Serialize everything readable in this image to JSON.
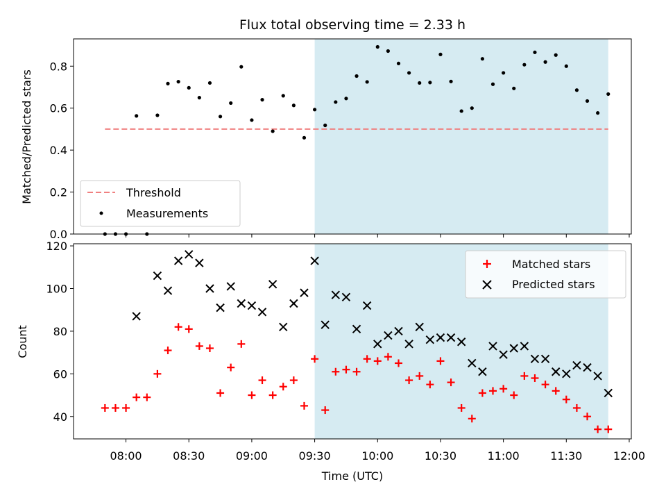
{
  "chart_data": {
    "type": "scatter",
    "title": "Flux total observing time = 2.33 h",
    "xlabel": "Time (UTC)",
    "x_ticks": [
      "08:00",
      "08:30",
      "09:00",
      "09:30",
      "10:00",
      "10:30",
      "11:00",
      "11:30",
      "12:00"
    ],
    "shaded_span": [
      "09:30",
      "11:50"
    ],
    "shade_color": "#add8e6",
    "panels": [
      {
        "id": "top",
        "ylabel": "Matched/Predicted stars",
        "ylim": [
          0,
          0.93
        ],
        "y_ticks": [
          "0.0",
          "0.2",
          "0.4",
          "0.6",
          "0.8"
        ],
        "legend_position": "lower-left",
        "threshold": {
          "name": "Threshold",
          "value": 0.5,
          "x_range": [
            "07:50",
            "11:50"
          ],
          "color": "#f08080"
        },
        "series": [
          {
            "name": "Measurements",
            "marker": "dot",
            "color": "#000000",
            "x": [
              "07:50",
              "07:55",
              "08:00",
              "08:05",
              "08:10",
              "08:15",
              "08:20",
              "08:25",
              "08:30",
              "08:35",
              "08:40",
              "08:45",
              "08:50",
              "08:55",
              "09:00",
              "09:05",
              "09:10",
              "09:15",
              "09:20",
              "09:25",
              "09:30",
              "09:35",
              "09:40",
              "09:45",
              "09:50",
              "09:55",
              "10:00",
              "10:05",
              "10:10",
              "10:15",
              "10:20",
              "10:25",
              "10:30",
              "10:35",
              "10:40",
              "10:45",
              "10:50",
              "10:55",
              "11:00",
              "11:05",
              "11:10",
              "11:15",
              "11:20",
              "11:25",
              "11:30",
              "11:35",
              "11:40",
              "11:45",
              "11:50"
            ],
            "y": [
              0.0,
              0.0,
              0.0,
              0.563,
              0.0,
              0.566,
              0.717,
              0.726,
              0.697,
              0.65,
              0.72,
              0.56,
              0.624,
              0.797,
              0.543,
              0.64,
              0.49,
              0.659,
              0.613,
              0.459,
              0.593,
              0.518,
              0.629,
              0.646,
              0.753,
              0.725,
              0.892,
              0.872,
              0.813,
              0.768,
              0.72,
              0.722,
              0.856,
              0.727,
              0.586,
              0.6,
              0.835,
              0.714,
              0.768,
              0.694,
              0.807,
              0.866,
              0.82,
              0.853,
              0.8,
              0.686,
              0.634,
              0.577,
              0.667
            ]
          }
        ]
      },
      {
        "id": "bottom",
        "ylabel": "Count",
        "ylim": [
          29.5,
          121
        ],
        "y_ticks": [
          "40",
          "60",
          "80",
          "100",
          "120"
        ],
        "legend_position": "upper-right",
        "series": [
          {
            "name": "Matched stars",
            "marker": "plus",
            "color": "#ff0000",
            "x": [
              "07:50",
              "07:55",
              "08:00",
              "08:05",
              "08:10",
              "08:15",
              "08:20",
              "08:25",
              "08:30",
              "08:35",
              "08:40",
              "08:45",
              "08:50",
              "08:55",
              "09:00",
              "09:05",
              "09:10",
              "09:15",
              "09:20",
              "09:25",
              "09:30",
              "09:35",
              "09:40",
              "09:45",
              "09:50",
              "09:55",
              "10:00",
              "10:05",
              "10:10",
              "10:15",
              "10:20",
              "10:25",
              "10:30",
              "10:35",
              "10:40",
              "10:45",
              "10:50",
              "10:55",
              "11:00",
              "11:05",
              "11:10",
              "11:15",
              "11:20",
              "11:25",
              "11:30",
              "11:35",
              "11:40",
              "11:45",
              "11:50"
            ],
            "y": [
              44,
              44,
              44,
              49,
              49,
              60,
              71,
              82,
              81,
              73,
              72,
              51,
              63,
              74,
              50,
              57,
              50,
              54,
              57,
              45,
              67,
              43,
              61,
              62,
              61,
              67,
              66,
              68,
              65,
              57,
              59,
              55,
              66,
              56,
              44,
              39,
              51,
              52,
              53,
              50,
              59,
              58,
              55,
              52,
              48,
              44,
              40,
              34,
              34
            ]
          },
          {
            "name": "Predicted stars",
            "marker": "x",
            "color": "#000000",
            "x": [
              "08:05",
              "08:15",
              "08:20",
              "08:25",
              "08:30",
              "08:35",
              "08:40",
              "08:45",
              "08:50",
              "08:55",
              "09:00",
              "09:05",
              "09:10",
              "09:15",
              "09:20",
              "09:25",
              "09:30",
              "09:35",
              "09:40",
              "09:45",
              "09:50",
              "09:55",
              "10:00",
              "10:05",
              "10:10",
              "10:15",
              "10:20",
              "10:25",
              "10:30",
              "10:35",
              "10:40",
              "10:45",
              "10:50",
              "10:55",
              "11:00",
              "11:05",
              "11:10",
              "11:15",
              "11:20",
              "11:25",
              "11:30",
              "11:35",
              "11:40",
              "11:45",
              "11:50"
            ],
            "y": [
              87,
              106,
              99,
              113,
              116,
              112,
              100,
              91,
              101,
              93,
              92,
              89,
              102,
              82,
              93,
              98,
              113,
              83,
              97,
              96,
              81,
              92,
              74,
              78,
              80,
              74,
              82,
              76,
              77,
              77,
              75,
              65,
              61,
              73,
              69,
              72,
              73,
              67,
              67,
              61,
              60,
              64,
              63,
              59,
              51
            ]
          }
        ]
      }
    ]
  }
}
